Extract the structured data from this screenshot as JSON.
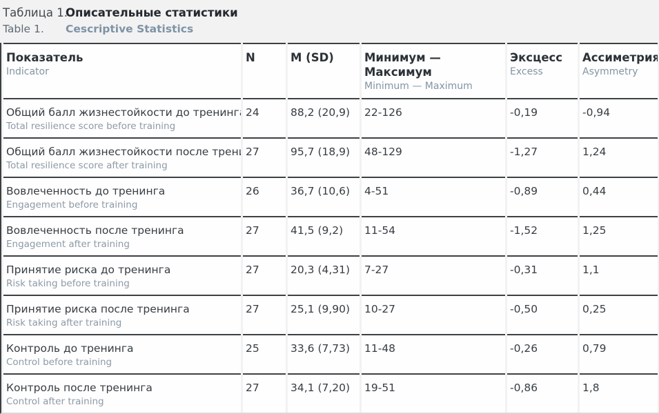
{
  "title": {
    "ru_prefix": "Таблица 1.",
    "ru_title": "Описательные статистики",
    "en_prefix": "Table 1.",
    "en_title": "Cescriptive Statistics"
  },
  "table": {
    "columns": [
      {
        "ru": "Показатель",
        "en": "Indicator"
      },
      {
        "ru": "N",
        "en": ""
      },
      {
        "ru": "M (SD)",
        "en": ""
      },
      {
        "ru": "Минимум — Максимум",
        "en": "Minimum — Maximum"
      },
      {
        "ru": "Эксцесс",
        "en": "Excess"
      },
      {
        "ru": "Ассиметрия",
        "en": "Asymmetry"
      }
    ],
    "rows": [
      {
        "label_ru": "Общий балл жизнестойкости до тренинга",
        "label_en": "Total resilience score before training",
        "n": "24",
        "m_sd": "88,2 (20,9)",
        "min_max": "22-126",
        "excess": "-0,19",
        "asymmetry": "-0,94"
      },
      {
        "label_ru": "Общий балл жизнестойкости после тренинга",
        "label_en": "Total resilience score after training",
        "n": "27",
        "m_sd": "95,7 (18,9)",
        "min_max": "48-129",
        "excess": "-1,27",
        "asymmetry": "1,24"
      },
      {
        "label_ru": "Вовлеченность до тренинга",
        "label_en": "Engagement before training",
        "n": "26",
        "m_sd": "36,7 (10,6)",
        "min_max": "4-51",
        "excess": "-0,89",
        "asymmetry": "0,44"
      },
      {
        "label_ru": "Вовлеченность после тренинга",
        "label_en": "Engagement after training",
        "n": "27",
        "m_sd": "41,5 (9,2)",
        "min_max": "11-54",
        "excess": "-1,52",
        "asymmetry": "1,25"
      },
      {
        "label_ru": "Принятие риска до тренинга",
        "label_en": "Risk taking before training",
        "n": "27",
        "m_sd": "20,3 (4,31)",
        "min_max": "7-27",
        "excess": "-0,31",
        "asymmetry": "1,1"
      },
      {
        "label_ru": "Принятие риска после тренинга",
        "label_en": "Risk taking after training",
        "n": "27",
        "m_sd": "25,1 (9,90)",
        "min_max": "10-27",
        "excess": "-0,50",
        "asymmetry": "0,25"
      },
      {
        "label_ru": "Контроль до тренинга",
        "label_en": "Control before training",
        "n": "25",
        "m_sd": "33,6 (7,73)",
        "min_max": "11-48",
        "excess": "-0,26",
        "asymmetry": "0,79"
      },
      {
        "label_ru": "Контроль после тренинга",
        "label_en": "Control after training",
        "n": "27",
        "m_sd": "34,1 (7,20)",
        "min_max": "19-51",
        "excess": "-0,86",
        "asymmetry": "1,8"
      }
    ]
  }
}
